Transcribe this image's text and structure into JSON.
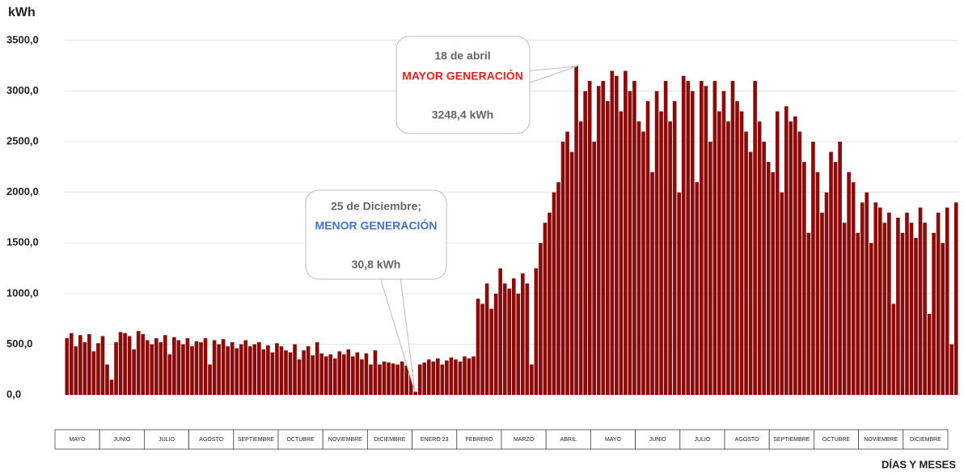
{
  "chart_data": {
    "type": "bar",
    "y_label": "kWh",
    "x_label": "DÍAS Y MESES",
    "color": "#8b0a0a",
    "ylim": [
      0,
      3500
    ],
    "yticks": [
      {
        "value": 0,
        "label": "0,0"
      },
      {
        "value": 500,
        "label": "500,0"
      },
      {
        "value": 1000,
        "label": "1000,0"
      },
      {
        "value": 1500,
        "label": "1500,0"
      },
      {
        "value": 2000,
        "label": "2000,0"
      },
      {
        "value": 2500,
        "label": "2500,0"
      },
      {
        "value": 3000,
        "label": "3000,0"
      },
      {
        "value": 3500,
        "label": "3500,0"
      }
    ],
    "grid": true,
    "months": [
      "MAYO",
      "JUNIO",
      "JULIO",
      "AGOSTO",
      "SEPTIEMBRE",
      "OCTUBRE",
      "NOVIEMBRE",
      "DICIEMBRE",
      "ENERO 23",
      "FEBRERO",
      "MARZO",
      "ABRIL",
      "MAYO",
      "JUNIO",
      "JULIO",
      "AGOSTO",
      "SEPTIEMBRE",
      "OCTUBRE",
      "NOVIEMBRE",
      "DICIEMBRE"
    ],
    "annotations": [
      {
        "date": "18 de abril",
        "title": "MAYOR GENERACIÓN",
        "value": "3248,4 kWh"
      },
      {
        "date": "25 de Diciembre;",
        "title": "MENOR GENERACIÓN",
        "value": "30,8 kWh"
      }
    ],
    "values": [
      560,
      610,
      480,
      590,
      520,
      600,
      430,
      510,
      580,
      300,
      150,
      520,
      620,
      610,
      580,
      450,
      630,
      600,
      540,
      500,
      560,
      520,
      590,
      400,
      570,
      540,
      500,
      560,
      480,
      530,
      520,
      560,
      300,
      540,
      500,
      550,
      480,
      520,
      460,
      500,
      540,
      480,
      500,
      520,
      450,
      490,
      420,
      510,
      480,
      440,
      420,
      500,
      350,
      440,
      480,
      390,
      520,
      410,
      380,
      400,
      360,
      430,
      400,
      450,
      380,
      420,
      350,
      410,
      300,
      440,
      300,
      330,
      320,
      310,
      300,
      330,
      290,
      250,
      30.8,
      300,
      320,
      350,
      330,
      360,
      300,
      340,
      370,
      350,
      330,
      380,
      360,
      380,
      950,
      900,
      1100,
      850,
      1000,
      1250,
      1100,
      1050,
      1150,
      1000,
      1200,
      1100,
      300,
      1250,
      1500,
      1700,
      1800,
      2000,
      2100,
      2500,
      2600,
      2400,
      3248.4,
      2700,
      3000,
      3100,
      2500,
      3050,
      3100,
      2900,
      3200,
      3150,
      2800,
      3200,
      3000,
      3100,
      2700,
      2600,
      2900,
      2200,
      3000,
      2800,
      3100,
      2700,
      2900,
      2000,
      3150,
      3100,
      3000,
      2100,
      3100,
      3050,
      2500,
      3100,
      2800,
      3000,
      2700,
      3100,
      2900,
      2800,
      2600,
      2400,
      3100,
      2700,
      2500,
      2300,
      2200,
      2800,
      2000,
      2850,
      2700,
      2750,
      2600,
      2300,
      1600,
      2500,
      2200,
      1800,
      2000,
      2400,
      2300,
      2500,
      1700,
      2200,
      2100,
      1600,
      1900,
      2000,
      1500,
      1900,
      1850,
      1700,
      1800,
      900,
      1750,
      1600,
      1800,
      1700,
      1550,
      1850,
      1700,
      800,
      1600,
      1800,
      1500,
      1850,
      500,
      1900
    ]
  }
}
